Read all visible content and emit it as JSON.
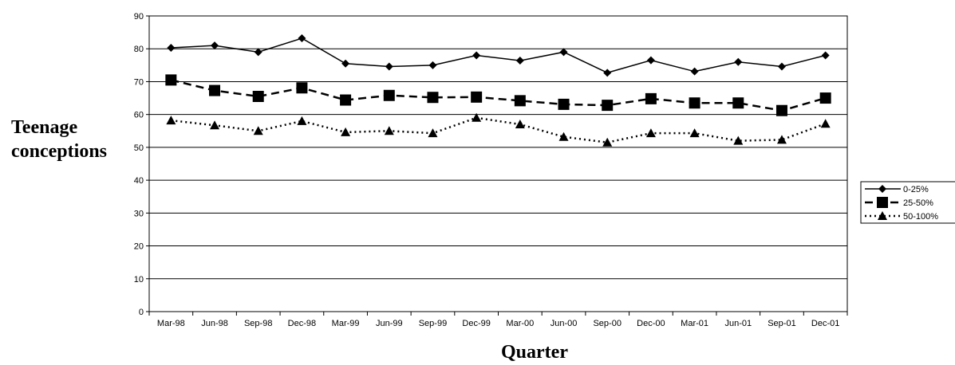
{
  "chart_data": {
    "type": "line",
    "title": "",
    "xlabel": "Quarter",
    "ylabel_line1": "Teenage",
    "ylabel_line2": "conceptions",
    "categories": [
      "Mar-98",
      "Jun-98",
      "Sep-98",
      "Dec-98",
      "Mar-99",
      "Jun-99",
      "Sep-99",
      "Dec-99",
      "Mar-00",
      "Jun-00",
      "Sep-00",
      "Dec-00",
      "Mar-01",
      "Jun-01",
      "Sep-01",
      "Dec-01"
    ],
    "ylim": [
      0,
      90
    ],
    "yticks": [
      0,
      10,
      20,
      30,
      40,
      50,
      60,
      70,
      80,
      90
    ],
    "grid": "horizontal",
    "legend_position": "right",
    "series": [
      {
        "name": "0-25%",
        "marker": "diamond",
        "line_style": "solid",
        "values": [
          80.3,
          81.0,
          79.0,
          83.2,
          75.5,
          74.6,
          75.0,
          78.0,
          76.4,
          79.0,
          72.7,
          76.5,
          73.1,
          76.0,
          74.6,
          78.0
        ]
      },
      {
        "name": "25-50%",
        "marker": "square",
        "line_style": "dashed",
        "values": [
          70.5,
          67.3,
          65.5,
          68.1,
          64.4,
          65.8,
          65.2,
          65.3,
          64.2,
          63.1,
          62.8,
          64.8,
          63.5,
          63.5,
          61.2,
          65.0
        ]
      },
      {
        "name": "50-100%",
        "marker": "triangle",
        "line_style": "dotted",
        "values": [
          58.2,
          56.7,
          55.0,
          58.0,
          54.6,
          55.0,
          54.3,
          59.0,
          57.0,
          53.2,
          51.5,
          54.3,
          54.3,
          52.0,
          52.3,
          57.2
        ]
      }
    ]
  }
}
